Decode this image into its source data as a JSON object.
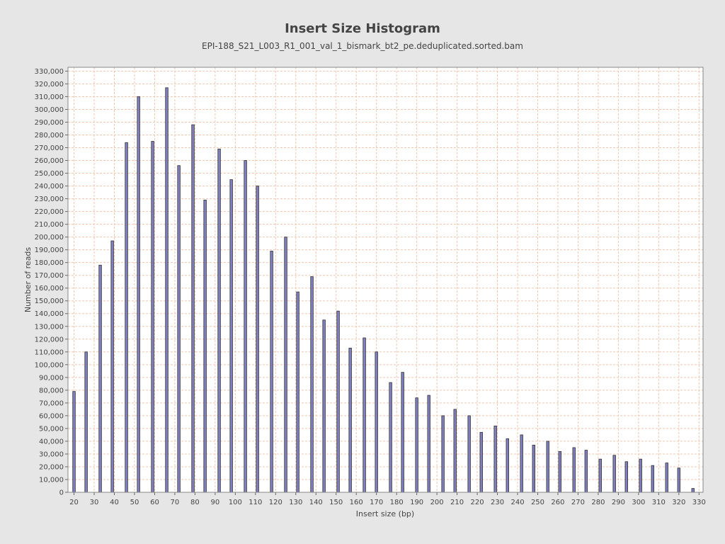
{
  "chart_data": {
    "type": "bar",
    "title": "Insert Size Histogram",
    "subtitle": "EPI-188_S21_L003_R1_001_val_1_bismark_bt2_pe.deduplicated.sorted.bam",
    "xlabel": "Insert size (bp)",
    "ylabel": "Number of reads",
    "xlim": [
      17,
      332
    ],
    "ylim": [
      0,
      333000
    ],
    "x_ticks": [
      20,
      30,
      40,
      50,
      60,
      70,
      80,
      90,
      100,
      110,
      120,
      130,
      140,
      150,
      160,
      170,
      180,
      190,
      200,
      210,
      220,
      230,
      240,
      250,
      260,
      270,
      280,
      290,
      300,
      310,
      320,
      330
    ],
    "y_ticks": [
      0,
      10000,
      20000,
      30000,
      40000,
      50000,
      60000,
      70000,
      80000,
      90000,
      100000,
      110000,
      120000,
      130000,
      140000,
      150000,
      160000,
      170000,
      180000,
      190000,
      200000,
      210000,
      220000,
      230000,
      240000,
      250000,
      260000,
      270000,
      280000,
      290000,
      300000,
      310000,
      320000,
      330000
    ],
    "grid": true,
    "x": [
      20,
      26,
      33,
      39,
      46,
      52,
      59,
      66,
      72,
      79,
      85,
      92,
      98,
      105,
      111,
      118,
      125,
      131,
      138,
      144,
      151,
      157,
      164,
      170,
      177,
      183,
      190,
      196,
      203,
      209,
      216,
      222,
      229,
      235,
      242,
      248,
      255,
      261,
      268,
      274,
      281,
      288,
      294,
      301,
      307,
      314,
      320,
      327
    ],
    "values": [
      79000,
      110000,
      178000,
      197000,
      274000,
      310000,
      275000,
      317000,
      256000,
      288000,
      229000,
      269000,
      245000,
      260000,
      240000,
      189000,
      200000,
      157000,
      169000,
      135000,
      142000,
      113000,
      121000,
      110000,
      86000,
      94000,
      74000,
      76000,
      60000,
      65000,
      60000,
      47000,
      52000,
      42000,
      45000,
      37000,
      40000,
      32000,
      35000,
      33000,
      26000,
      29000,
      24000,
      26000,
      21000,
      23000,
      19000,
      3000
    ],
    "colors": {
      "bar_fill": "#8080c0",
      "bar_stroke": "#333333",
      "grid": "#f0c8b0",
      "plot_bg": "#ffffff",
      "page_bg": "#e6e6e6"
    }
  }
}
